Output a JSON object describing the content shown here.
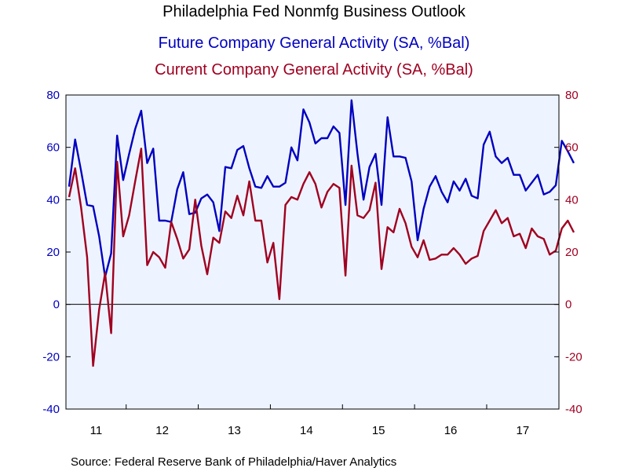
{
  "colors": {
    "future": "#0000c0",
    "current": "#a00020",
    "plot_bg": "#eef4ff",
    "frame": "#000000"
  },
  "chart_data": {
    "type": "line",
    "title": "Philadelphia Fed Nonmfg Business Outlook",
    "left_axis": {
      "ticks": [
        80,
        60,
        40,
        20,
        0,
        -20,
        -40
      ],
      "ylim": [
        -40,
        80
      ]
    },
    "right_axis": {
      "ticks": [
        80,
        60,
        40,
        20,
        0,
        -20,
        -40
      ],
      "ylim": [
        -40,
        80
      ]
    },
    "x_labels": [
      "11",
      "12",
      "13",
      "14",
      "15",
      "16",
      "17"
    ],
    "x_range": [
      "2011-03",
      "2017-12"
    ],
    "zero_line": true,
    "source": "Source:  Federal Reserve Bank of Philadelphia/Haver Analytics",
    "series": [
      {
        "name": "Future Company General Activity (SA, %Bal)",
        "color": "#0000c0",
        "axis": "left",
        "start": "2011-03",
        "values": [
          45,
          63,
          51,
          38,
          37.5,
          26,
          10.5,
          19.5,
          64.5,
          47.5,
          57.5,
          67,
          74,
          54,
          59.5,
          32,
          32,
          31.5,
          44,
          50.5,
          34.5,
          35,
          40.5,
          42,
          39,
          28,
          52.5,
          52,
          59,
          60.5,
          52,
          45,
          44.5,
          49,
          45,
          45,
          46.5,
          60,
          55,
          74.5,
          69.5,
          61.5,
          63.5,
          63.5,
          68,
          65.5,
          38,
          78,
          57.5,
          40,
          52.5,
          57.5,
          38,
          71.5,
          56.5,
          56.5,
          56,
          47,
          24.5,
          36.5,
          45,
          49,
          43,
          39,
          47,
          43.5,
          48,
          41.5,
          40.5,
          61,
          66,
          56.5,
          54,
          56,
          49.5,
          49.5,
          43.5,
          46.5,
          49.5,
          42,
          43,
          45.5,
          62.5,
          58.5,
          54
        ]
      },
      {
        "name": "Current Company General Activity (SA, %Bal)",
        "color": "#a00020",
        "axis": "right",
        "start": "2011-03",
        "values": [
          41,
          52,
          37,
          18,
          -23.5,
          -2,
          12,
          -11,
          54.5,
          26,
          34,
          47,
          59.5,
          15,
          20,
          18,
          14,
          31.5,
          25,
          17.5,
          21,
          40,
          22.5,
          11.5,
          25.5,
          23.5,
          35.5,
          33,
          41.5,
          34,
          47,
          32,
          32,
          16,
          23.5,
          2,
          38,
          41,
          40,
          46,
          50.5,
          46,
          37,
          43,
          46,
          44.5,
          11,
          53,
          34,
          33,
          36,
          46.5,
          13.5,
          29.5,
          27.5,
          36.5,
          31,
          22,
          18,
          24.5,
          17,
          17.5,
          19,
          19,
          21.5,
          19,
          15.5,
          17.5,
          18.5,
          28,
          32,
          36,
          31,
          33,
          26,
          27,
          21.5,
          29,
          26,
          25,
          19,
          20.5,
          29,
          32,
          27.5
        ]
      }
    ]
  }
}
